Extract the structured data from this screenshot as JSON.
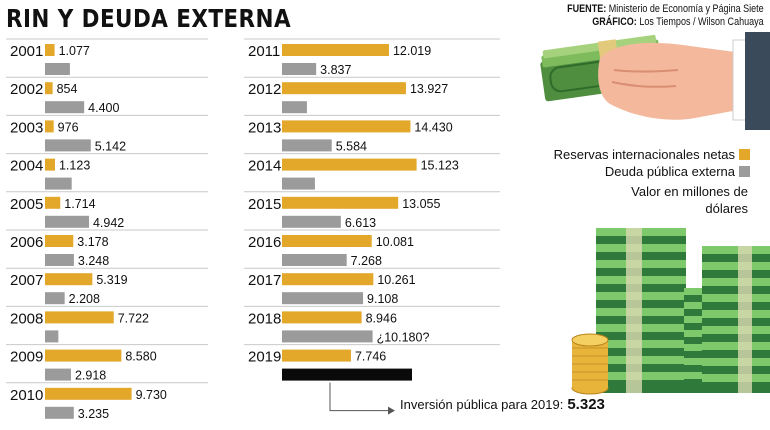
{
  "title": "RIN Y DEUDA EXTERNA",
  "credits": {
    "source_label": "FUENTE:",
    "source": "Ministerio de Economía y Página Siete",
    "graphic_label": "GRÁFICO:",
    "graphic": "Los Tiempos / Wilson Cahuaya"
  },
  "legend": {
    "rin": "Reservas internacionales netas",
    "deuda": "Deuda pública externa"
  },
  "unit_note": "Valor en millones de dólares",
  "inversion": {
    "label": "Inversión pública para 2019:",
    "value": "5.323"
  },
  "colors": {
    "rin": "#e3a72a",
    "deuda": "#9b9b9b",
    "inversion": "#0a0a0a"
  },
  "illustrations": [
    "hand-holding-cash-icon",
    "cash-stacks-icon",
    "gold-coins-icon"
  ],
  "chart_data": {
    "type": "bar",
    "orientation": "horizontal",
    "title": "RIN Y DEUDA EXTERNA",
    "categories": [
      "2001",
      "2002",
      "2003",
      "2004",
      "2005",
      "2006",
      "2007",
      "2008",
      "2009",
      "2010",
      "2011",
      "2012",
      "2013",
      "2014",
      "2015",
      "2016",
      "2017",
      "2018",
      "2019"
    ],
    "series": [
      {
        "name": "Reservas internacionales netas",
        "values": [
          1077,
          854,
          976,
          1123,
          1714,
          3178,
          5319,
          7722,
          8580,
          9730,
          12019,
          13927,
          14430,
          15123,
          13055,
          10081,
          10261,
          8946,
          7746
        ],
        "labels": [
          "1.077",
          "854",
          "976",
          "1.123",
          "1.714",
          "3.178",
          "5.319",
          "7.722",
          "8.580",
          "9.730",
          "12.019",
          "13.927",
          "14.430",
          "15.123",
          "13.055",
          "10.081",
          "10.261",
          "8.946",
          "7.746"
        ]
      },
      {
        "name": "Deuda pública externa",
        "values": [
          2800,
          4400,
          5142,
          3000,
          4942,
          3248,
          2208,
          1500,
          2918,
          3235,
          3837,
          2800,
          5584,
          3700,
          6613,
          7268,
          9108,
          10180,
          null
        ],
        "labels": [
          "",
          "4.400",
          "5.142",
          "",
          "4.942",
          "3.248",
          "2.208",
          "",
          "2.918",
          "3.235",
          "3.837",
          "",
          "5.584",
          "",
          "6.613",
          "7.268",
          "9.108",
          "¿10.180?",
          ""
        ]
      }
    ]
  }
}
